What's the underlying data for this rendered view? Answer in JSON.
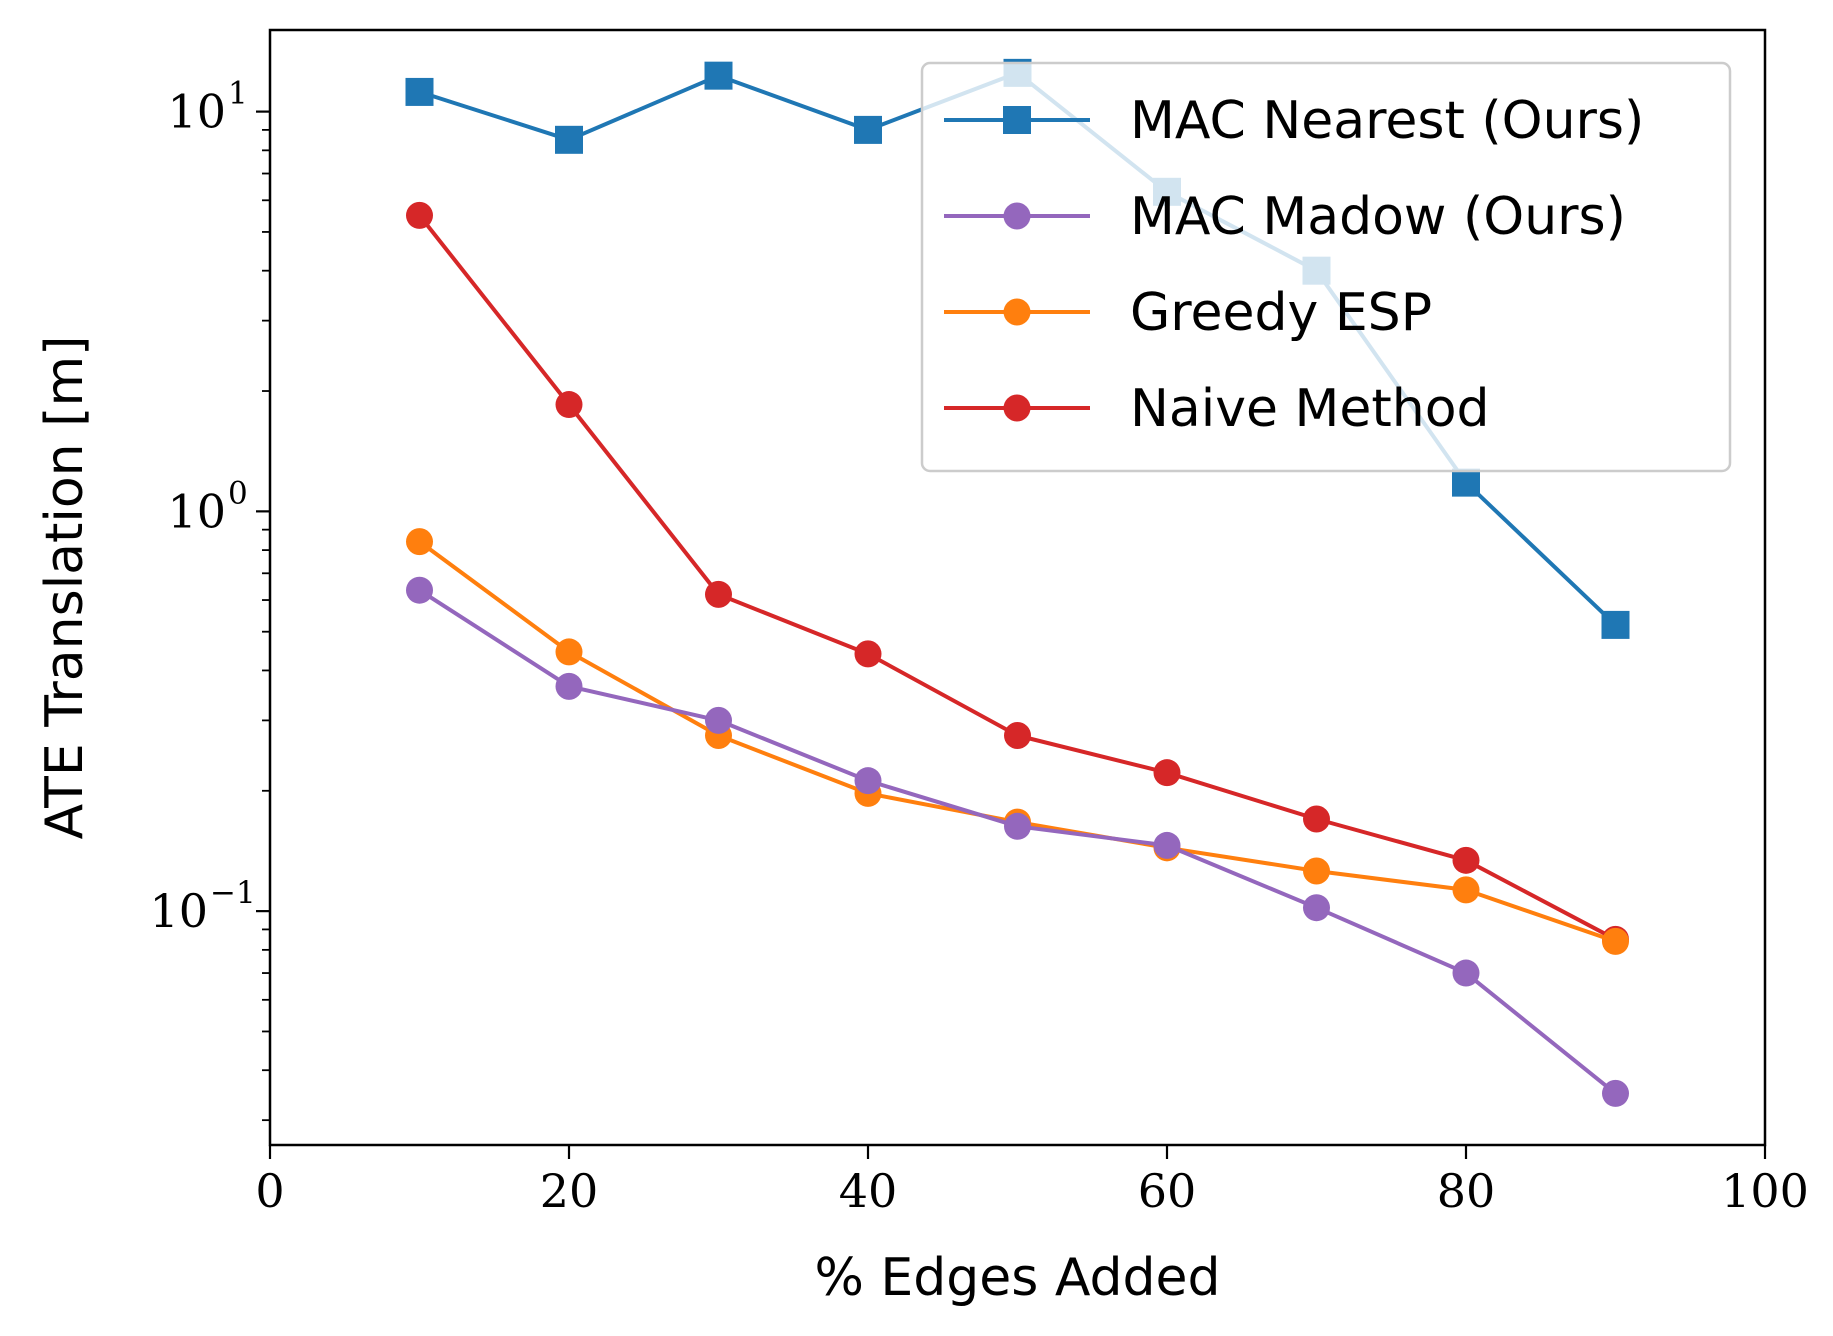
{
  "chart_data": {
    "type": "line",
    "title": "",
    "xlabel": "% Edges Added",
    "ylabel": "ATE Translation [m]",
    "yscale": "log",
    "xlim": [
      0,
      100
    ],
    "ylim": [
      0.026,
      16
    ],
    "grid": false,
    "legend_position": "top-right",
    "x_ticks": [
      {
        "value": 0,
        "label": "0"
      },
      {
        "value": 20,
        "label": "20"
      },
      {
        "value": 40,
        "label": "40"
      },
      {
        "value": 60,
        "label": "60"
      },
      {
        "value": 80,
        "label": "80"
      },
      {
        "value": 100,
        "label": "100"
      }
    ],
    "y_ticks": [
      {
        "value": 10,
        "base": "10",
        "exp": "1"
      },
      {
        "value": 1,
        "base": "10",
        "exp": "0"
      },
      {
        "value": 0.1,
        "base": "10",
        "exp": "−1"
      }
    ],
    "x": [
      10,
      20,
      30,
      40,
      50,
      60,
      70,
      80,
      90
    ],
    "series": [
      {
        "name": "Naive Method",
        "color": "#d62728",
        "marker": "circle",
        "values": [
          5.5,
          1.85,
          0.62,
          0.44,
          0.275,
          0.222,
          0.17,
          0.134,
          0.085
        ]
      },
      {
        "name": "Greedy ESP",
        "color": "#ff7f0e",
        "marker": "circle",
        "values": [
          0.84,
          0.445,
          0.275,
          0.197,
          0.167,
          0.144,
          0.126,
          0.113,
          0.084
        ]
      },
      {
        "name": "MAC Madow (Ours)",
        "color": "#9467bd",
        "marker": "circle",
        "values": [
          0.635,
          0.365,
          0.3,
          0.212,
          0.163,
          0.146,
          0.102,
          0.07,
          0.035
        ]
      },
      {
        "name": "MAC Nearest (Ours)",
        "color": "#1f77b4",
        "marker": "square",
        "values": [
          11.2,
          8.5,
          12.3,
          9.0,
          12.5,
          6.3,
          4.0,
          1.18,
          0.52
        ]
      }
    ],
    "legend_order": [
      "MAC Nearest (Ours)",
      "MAC Madow (Ours)",
      "Greedy ESP",
      "Naive Method"
    ]
  }
}
